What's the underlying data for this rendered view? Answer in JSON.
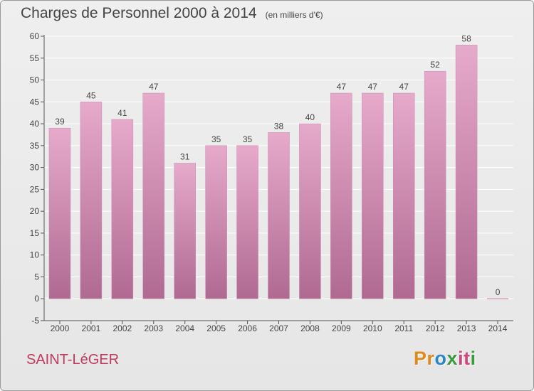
{
  "title": "Charges de Personnel 2000 à 2014",
  "subtitle": "(en milliers d'€)",
  "commune": "SAINT-LéGER",
  "logo": {
    "letters": [
      "P",
      "r",
      "o",
      "x",
      "i",
      "t",
      "i"
    ],
    "colors": [
      "#e08a1e",
      "#e08a1e",
      "#2a86c8",
      "#3a9b3a",
      "#d4447c",
      "#d4447c",
      "#3a9b3a"
    ]
  },
  "colors": {
    "bar_top": "#e6aacb",
    "bar_bottom": "#b06a92",
    "grid": "#ffffff",
    "axis": "#555555"
  },
  "chart_data": {
    "type": "bar",
    "categories": [
      "2000",
      "2001",
      "2002",
      "2003",
      "2004",
      "2005",
      "2006",
      "2007",
      "2008",
      "2009",
      "2010",
      "2011",
      "2012",
      "2013",
      "2014"
    ],
    "values": [
      39,
      45,
      41,
      47,
      31,
      35,
      35,
      38,
      40,
      47,
      47,
      47,
      52,
      58,
      0
    ],
    "title": "Charges de Personnel 2000 à 2014",
    "subtitle": "(en milliers d'€)",
    "xlabel": "",
    "ylabel": "",
    "ylim": [
      -5,
      60
    ],
    "yticks": [
      -5,
      0,
      5,
      10,
      15,
      20,
      25,
      30,
      35,
      40,
      45,
      50,
      55,
      60
    ],
    "grid": true,
    "legend": "none"
  }
}
